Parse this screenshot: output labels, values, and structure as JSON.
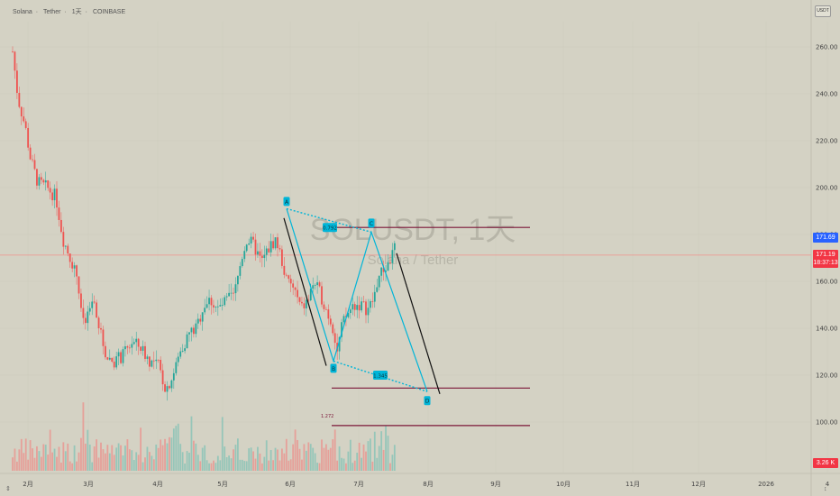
{
  "header": {
    "pair_name": "Solana",
    "quote": "Tether",
    "interval": "1天",
    "exchange": "COINBASE"
  },
  "currency_button": "USDT",
  "watermark": {
    "symbol": "SOLUSDT, 1天",
    "subtitle": "Solana / Tether"
  },
  "price_tags": {
    "blue": "171.69",
    "red_price": "171.19",
    "red_time": "18:37:13",
    "volume": "3.26 K"
  },
  "bottom_controls": {
    "left": "⇕",
    "right": "↕"
  },
  "colors": {
    "up": "#26a69a",
    "down": "#ef5350",
    "pattern": "#00b5d8",
    "level": "#7b1638",
    "blue_tag": "#2962ff",
    "red_tag": "#f23645"
  },
  "chart_data": {
    "type": "candlestick",
    "ylim": [
      92,
      268
    ],
    "y_ticks": [
      "260.00",
      "240.00",
      "220.00",
      "200.00",
      "180.00",
      "160.00",
      "140.00",
      "120.00",
      "100.00"
    ],
    "y_tick_values": [
      260,
      240,
      220,
      200,
      180,
      160,
      140,
      120,
      100
    ],
    "x_ticks": [
      "2月",
      "3月",
      "4月",
      "5月",
      "6月",
      "7月",
      "8月",
      "9月",
      "10月",
      "11月",
      "12月",
      "2026",
      "4"
    ],
    "x_tick_positions": [
      31,
      98,
      175,
      247,
      322,
      398,
      475,
      550,
      625,
      702,
      775,
      850,
      918
    ],
    "current_price": 171.19,
    "harmonic_pattern": {
      "points": [
        {
          "label": "A",
          "price": 191
        },
        {
          "label": "B",
          "price": 126
        },
        {
          "label": "C",
          "price": 181
        },
        {
          "label": "D",
          "price": 113
        }
      ],
      "ratios": [
        "0.792",
        "1.345"
      ],
      "extension_label": "1.272"
    },
    "levels": [
      183,
      114.5,
      98.5
    ]
  }
}
